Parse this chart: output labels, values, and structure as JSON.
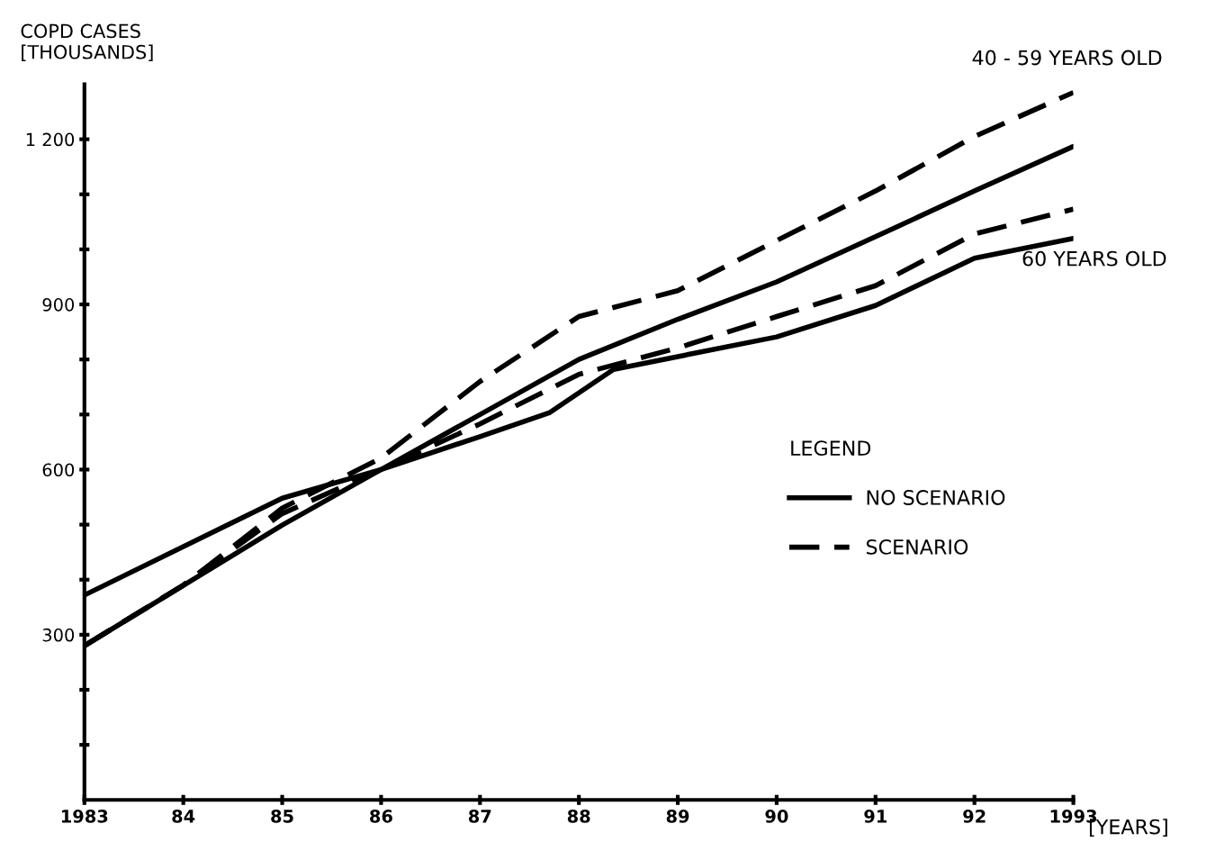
{
  "chart_data": {
    "type": "line",
    "ylabel": "COPD CASES\n[THOUSANDS]",
    "xlabel": "[YEARS]",
    "legend_title": "LEGEND",
    "xlim": [
      1983,
      1993
    ],
    "xticks": [
      {
        "value": 1983,
        "label": "1983"
      },
      {
        "value": 1984,
        "label": "84"
      },
      {
        "value": 1985,
        "label": "85"
      },
      {
        "value": 1986,
        "label": "86"
      },
      {
        "value": 1987,
        "label": "87"
      },
      {
        "value": 1988,
        "label": "88"
      },
      {
        "value": 1989,
        "label": "89"
      },
      {
        "value": 1990,
        "label": "90"
      },
      {
        "value": 1991,
        "label": "91"
      },
      {
        "value": 1992,
        "label": "92"
      },
      {
        "value": 1993,
        "label": "1993"
      }
    ],
    "ylim": [
      0,
      1300
    ],
    "yticks": [
      {
        "value": 100,
        "label": null
      },
      {
        "value": 200,
        "label": null
      },
      300,
      {
        "value": 400,
        "label": null
      },
      {
        "value": 500,
        "label": null
      },
      600,
      {
        "value": 700,
        "label": null
      },
      {
        "value": 800,
        "label": null
      },
      900,
      {
        "value": 1000,
        "label": null
      },
      {
        "value": 1100,
        "label": null
      },
      {
        "value": 1200,
        "label": "1 200"
      }
    ],
    "series": [
      {
        "name": "NO SCENARIO",
        "color": "#000000",
        "line_style": "solid",
        "x": [
          1983,
          1985,
          1986,
          1987,
          1988,
          1989,
          1990,
          1991,
          1992,
          1993
        ],
        "values": [
          280,
          499,
          600,
          700,
          800,
          873,
          941,
          1023,
          1106,
          1187
        ]
      },
      {
        "color": "#000000",
        "line_style": "solid",
        "x": [
          1983,
          1985,
          1986,
          1987,
          1987.7,
          1988.35,
          1990,
          1991,
          1992,
          1993
        ],
        "values": [
          372,
          548,
          600,
          660,
          703,
          782,
          841,
          898,
          984,
          1020
        ]
      },
      {
        "name": "SCENARIO",
        "color": "#000000",
        "line_style": "dashed",
        "x": [
          1983,
          1984,
          1985,
          1986,
          1987,
          1988,
          1989,
          1990,
          1991,
          1992,
          1993
        ],
        "values": [
          280,
          390,
          530,
          621,
          760,
          878,
          925,
          1016,
          1106,
          1205,
          1285
        ]
      },
      {
        "color": "#000000",
        "line_style": "dashed",
        "x": [
          1983,
          1984,
          1985,
          1986,
          1987,
          1988,
          1989,
          1990,
          1991,
          1992,
          1993
        ],
        "values": [
          280,
          390,
          520,
          600,
          683,
          773,
          821,
          878,
          934,
          1028,
          1073
        ]
      }
    ],
    "annotations": [
      {
        "text": "40 - 59 YEARS OLD",
        "x": 1993,
        "y": 1285
      },
      {
        "text": "60 YEARS OLD",
        "x": 1993,
        "y": 1020
      }
    ],
    "legend": "center right",
    "grid": false
  }
}
